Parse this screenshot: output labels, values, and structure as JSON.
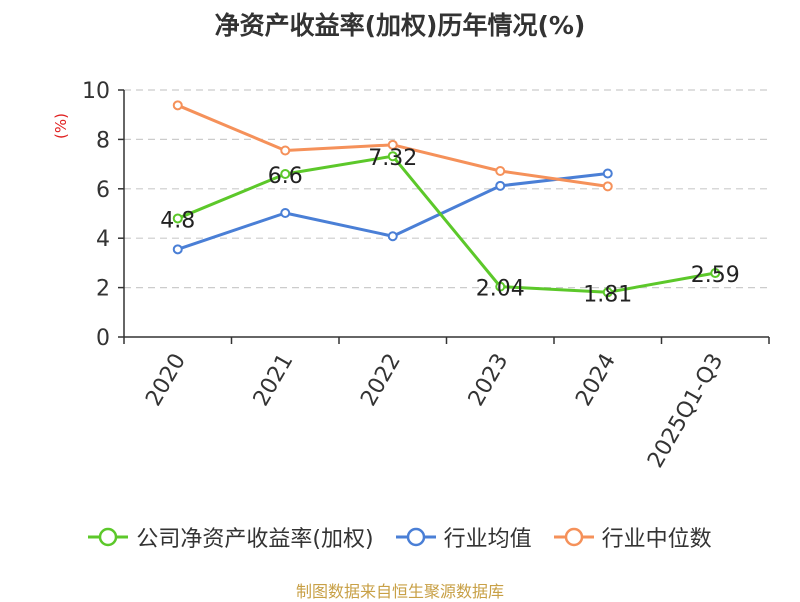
{
  "chart_data": {
    "type": "line",
    "title": "净资产收益率(加权)历年情况(%)",
    "ylabel": "(%)",
    "xlabel": "",
    "categories": [
      "2020",
      "2021",
      "2022",
      "2023",
      "2024",
      "2025Q1-Q3"
    ],
    "ylim": [
      0,
      10
    ],
    "yticks": [
      0,
      2,
      4,
      6,
      8,
      10
    ],
    "grid": "horizontal dashed",
    "legend": "bottom",
    "series": [
      {
        "name": "公司净资产收益率(加权)",
        "color": "#5cc82a",
        "values": [
          4.8,
          6.6,
          7.32,
          2.04,
          1.81,
          2.59
        ],
        "labels": [
          "4.8",
          "6.6",
          "7.32",
          "2.04",
          "1.81",
          "2.59"
        ]
      },
      {
        "name": "行业均值",
        "color": "#4a7fd6",
        "values": [
          3.55,
          5.02,
          4.08,
          6.12,
          6.62,
          null
        ]
      },
      {
        "name": "行业中位数",
        "color": "#f5915a",
        "values": [
          9.38,
          7.55,
          7.78,
          6.72,
          6.1,
          null
        ]
      }
    ]
  },
  "source": "制图数据来自恒生聚源数据库",
  "colors": {
    "axis": "#333333",
    "grid": "#cccccc",
    "ylabel": "#e02020",
    "source": "#c8a046"
  }
}
